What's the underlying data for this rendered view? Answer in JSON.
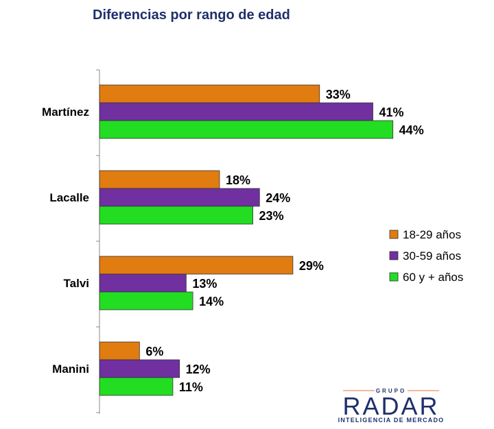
{
  "chart_data": {
    "type": "bar",
    "orientation": "horizontal",
    "title": "Diferencias por rango de edad",
    "categories": [
      "Martínez",
      "Lacalle",
      "Talvi",
      "Manini"
    ],
    "series": [
      {
        "name": "18-29 años",
        "color": "#e07c10",
        "values": [
          33,
          18,
          29,
          6
        ],
        "labels": [
          "33%",
          "18%",
          "29%",
          "6%"
        ]
      },
      {
        "name": "30-59 años",
        "color": "#7030a0",
        "values": [
          41,
          24,
          13,
          12
        ],
        "labels": [
          "41%",
          "24%",
          "13%",
          "12%"
        ]
      },
      {
        "name": "60 y + años",
        "color": "#22dd22",
        "values": [
          44,
          23,
          14,
          11
        ],
        "labels": [
          "44%",
          "23%",
          "14%",
          "11%"
        ]
      }
    ],
    "xlim": [
      0,
      50
    ],
    "legend_position": "right",
    "grid": false,
    "xlabel": "",
    "ylabel": ""
  },
  "logo": {
    "top": "GRUPO",
    "name": "RADAR",
    "tagline": "INTELIGENCIA DE MERCADO",
    "color": "#1f2f6b",
    "accent": "#e8703a"
  }
}
